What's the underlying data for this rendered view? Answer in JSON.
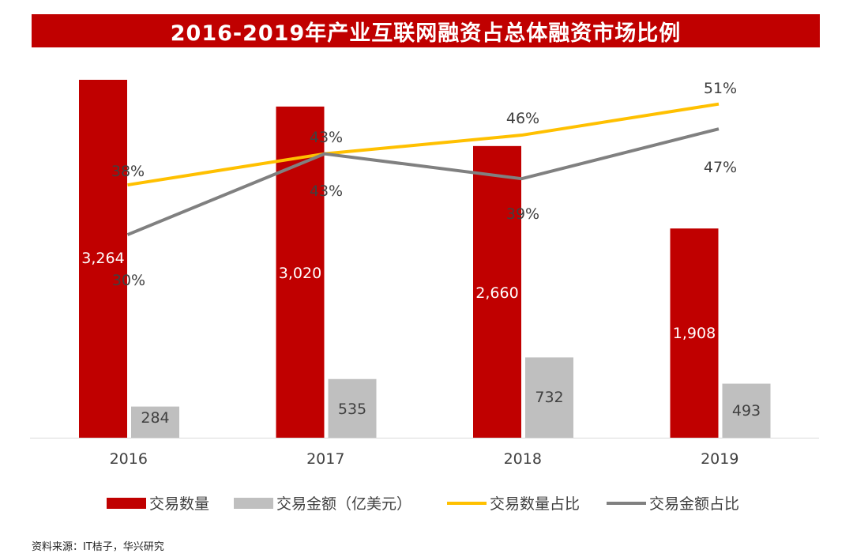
{
  "title": "2016-2019年产业互联网融资占总体融资市场比例",
  "source": "资料来源：IT桔子，华兴研究",
  "chart_data": {
    "type": "bar",
    "categories": [
      "2016",
      "2017",
      "2018",
      "2019"
    ],
    "series": [
      {
        "name": "交易数量",
        "kind": "bar",
        "axis": "left",
        "color": "#c00000",
        "values": [
          3264,
          3020,
          2660,
          1908
        ],
        "labels": [
          "3,264",
          "3,020",
          "2,660",
          "1,908"
        ]
      },
      {
        "name": "交易金额（亿美元）",
        "kind": "bar",
        "axis": "left",
        "color": "#bfbfbf",
        "values": [
          284,
          535,
          732,
          493
        ],
        "labels": [
          "284",
          "535",
          "732",
          "493"
        ]
      },
      {
        "name": "交易数量占比",
        "kind": "line",
        "axis": "right",
        "color": "#ffc000",
        "values": [
          38,
          43,
          46,
          51
        ],
        "labels": [
          "38%",
          "43%",
          "46%",
          "51%"
        ]
      },
      {
        "name": "交易金额占比",
        "kind": "line",
        "axis": "right",
        "color": "#808080",
        "values": [
          30,
          43,
          39,
          47
        ],
        "labels": [
          "30%",
          "43%",
          "39%",
          "47%"
        ]
      }
    ],
    "legend_position": "bottom",
    "grid": false
  }
}
